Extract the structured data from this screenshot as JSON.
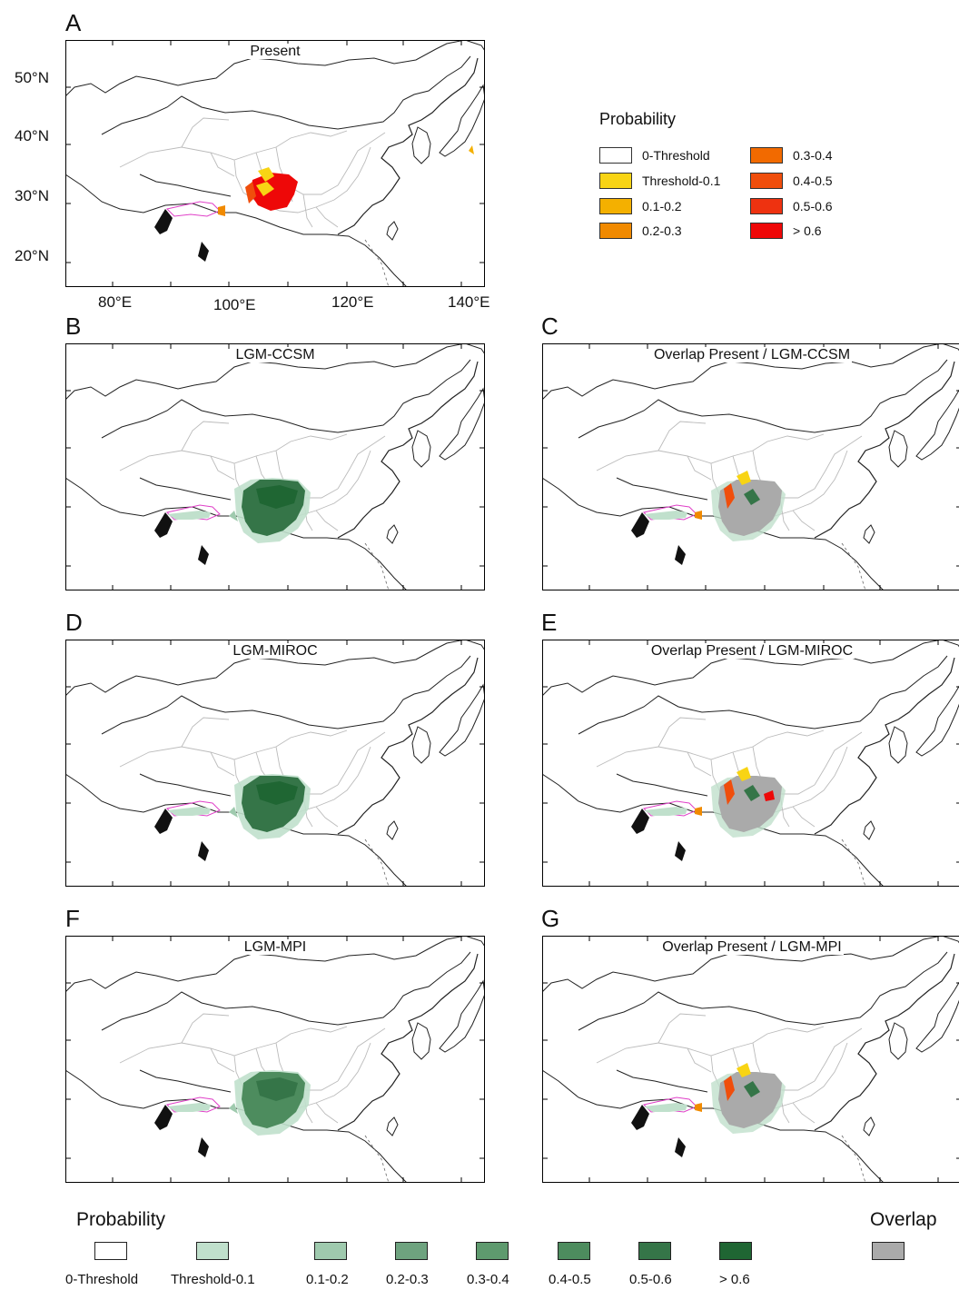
{
  "panels": {
    "A": {
      "letter": "A",
      "title": "Present"
    },
    "B": {
      "letter": "B",
      "title": "LGM-CCSM"
    },
    "C": {
      "letter": "C",
      "title": "Overlap Present / LGM-CCSM"
    },
    "D": {
      "letter": "D",
      "title": "LGM-MIROC"
    },
    "E": {
      "letter": "E",
      "title": "Overlap Present / LGM-MIROC"
    },
    "F": {
      "letter": "F",
      "title": "LGM-MPI"
    },
    "G": {
      "letter": "G",
      "title": "Overlap Present / LGM-MPI"
    }
  },
  "axes": {
    "latitude_labels": [
      "50°N",
      "40°N",
      "30°N",
      "20°N"
    ],
    "longitude_labels": [
      "80°E",
      "100°E",
      "120°E",
      "140°E"
    ]
  },
  "present_legend": {
    "title": "Probability",
    "items": [
      {
        "label": "0-Threshold",
        "color": "#ffffff"
      },
      {
        "label": "Threshold-0.1",
        "color": "#f8d414"
      },
      {
        "label": "0.1-0.2",
        "color": "#f4b000"
      },
      {
        "label": "0.2-0.3",
        "color": "#f18a00"
      },
      {
        "label": "0.3-0.4",
        "color": "#f26a00"
      },
      {
        "label": "0.4-0.5",
        "color": "#f04e0c"
      },
      {
        "label": "0.5-0.6",
        "color": "#ee3210"
      },
      {
        "label": "> 0.6",
        "color": "#ee0808"
      }
    ]
  },
  "lgm_legend": {
    "title": "Probability",
    "items": [
      {
        "label": "0-Threshold",
        "color": "#ffffff"
      },
      {
        "label": "Threshold-0.1",
        "color": "#c0e0cc"
      },
      {
        "label": "0.1-0.2",
        "color": "#9fcaae"
      },
      {
        "label": "0.2-0.3",
        "color": "#6ea37f"
      },
      {
        "label": "0.3-0.4",
        "color": "#5e9a6e"
      },
      {
        "label": "0.4-0.5",
        "color": "#4d8c5e"
      },
      {
        "label": "0.5-0.6",
        "color": "#357548"
      },
      {
        "label": "> 0.6",
        "color": "#1f6633"
      }
    ]
  },
  "overlap_legend": {
    "title": "Overlap",
    "color": "#aaaaaa"
  }
}
